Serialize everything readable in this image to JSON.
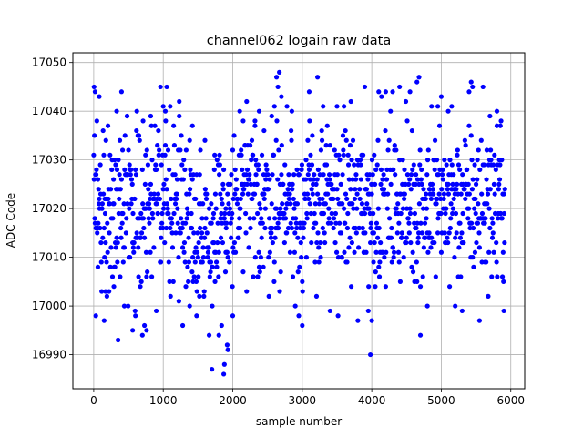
{
  "chart_data": {
    "type": "scatter",
    "title": "channel062 logain raw data",
    "xlabel": "sample number",
    "ylabel": "ADC Code",
    "xlim": [
      -300,
      6200
    ],
    "ylim": [
      16983,
      17052
    ],
    "xticks": [
      0,
      1000,
      2000,
      3000,
      4000,
      5000,
      6000
    ],
    "yticks": [
      16990,
      17000,
      17010,
      17020,
      17030,
      17040,
      17050
    ],
    "grid": true,
    "legend": "none",
    "marker_color": "#0000ff",
    "n_samples": 5920,
    "series": [
      {
        "points": [
          [
            5,
            17045
          ],
          [
            20,
            17044
          ],
          [
            30,
            16998
          ],
          [
            60,
            17008
          ],
          [
            80,
            17043
          ],
          [
            150,
            16997
          ],
          [
            170,
            17003
          ],
          [
            220,
            17003
          ],
          [
            290,
            17004
          ],
          [
            330,
            17040
          ],
          [
            350,
            16993
          ],
          [
            400,
            17044
          ],
          [
            440,
            17000
          ],
          [
            480,
            17039
          ],
          [
            560,
            16995
          ],
          [
            600,
            16998
          ],
          [
            620,
            17040
          ],
          [
            700,
            16994
          ],
          [
            730,
            16996
          ],
          [
            760,
            16995
          ],
          [
            820,
            17039
          ],
          [
            900,
            16999
          ],
          [
            960,
            17045
          ],
          [
            1000,
            17041
          ],
          [
            1030,
            17040
          ],
          [
            1050,
            17045
          ],
          [
            1100,
            17041
          ],
          [
            1230,
            17042
          ],
          [
            1280,
            16996
          ],
          [
            1380,
            17000
          ],
          [
            1420,
            17037
          ],
          [
            1480,
            16998
          ],
          [
            1600,
            17034
          ],
          [
            1660,
            16994
          ],
          [
            1700,
            16987
          ],
          [
            1740,
            17031
          ],
          [
            1800,
            16994
          ],
          [
            1840,
            16996
          ],
          [
            1870,
            16986
          ],
          [
            1880,
            16988
          ],
          [
            1900,
            17020
          ],
          [
            1920,
            16992
          ],
          [
            1930,
            16991
          ],
          [
            2000,
            16998
          ],
          [
            2100,
            17040
          ],
          [
            2150,
            17038
          ],
          [
            2200,
            17042
          ],
          [
            2320,
            17038
          ],
          [
            2380,
            17040
          ],
          [
            2450,
            17036
          ],
          [
            2560,
            17039
          ],
          [
            2600,
            17041
          ],
          [
            2630,
            17047
          ],
          [
            2650,
            17045
          ],
          [
            2670,
            17048
          ],
          [
            2700,
            17043
          ],
          [
            2780,
            17041
          ],
          [
            2850,
            17040
          ],
          [
            2900,
            17000
          ],
          [
            2950,
            16998
          ],
          [
            3000,
            16996
          ],
          [
            3100,
            17044
          ],
          [
            3220,
            17047
          ],
          [
            3300,
            17041
          ],
          [
            3400,
            16999
          ],
          [
            3500,
            17041
          ],
          [
            3600,
            17041
          ],
          [
            3700,
            17042
          ],
          [
            3800,
            16997
          ],
          [
            3900,
            17045
          ],
          [
            3950,
            16999
          ],
          [
            3980,
            16990
          ],
          [
            4000,
            16997
          ],
          [
            4100,
            17044
          ],
          [
            4200,
            17044
          ],
          [
            4300,
            17044
          ],
          [
            4400,
            17045
          ],
          [
            4550,
            17044
          ],
          [
            4650,
            17046
          ],
          [
            4680,
            17047
          ],
          [
            4700,
            16994
          ],
          [
            4800,
            17000
          ],
          [
            4860,
            17041
          ],
          [
            4950,
            17041
          ],
          [
            5000,
            17043
          ],
          [
            5100,
            17040
          ],
          [
            5150,
            17041
          ],
          [
            5200,
            17000
          ],
          [
            5300,
            16999
          ],
          [
            5400,
            17044
          ],
          [
            5430,
            17046
          ],
          [
            5450,
            17045
          ],
          [
            5550,
            16997
          ],
          [
            5600,
            17045
          ],
          [
            5700,
            17039
          ],
          [
            5800,
            17040
          ],
          [
            5850,
            17037
          ],
          [
            5900,
            16999
          ]
        ]
      }
    ]
  }
}
